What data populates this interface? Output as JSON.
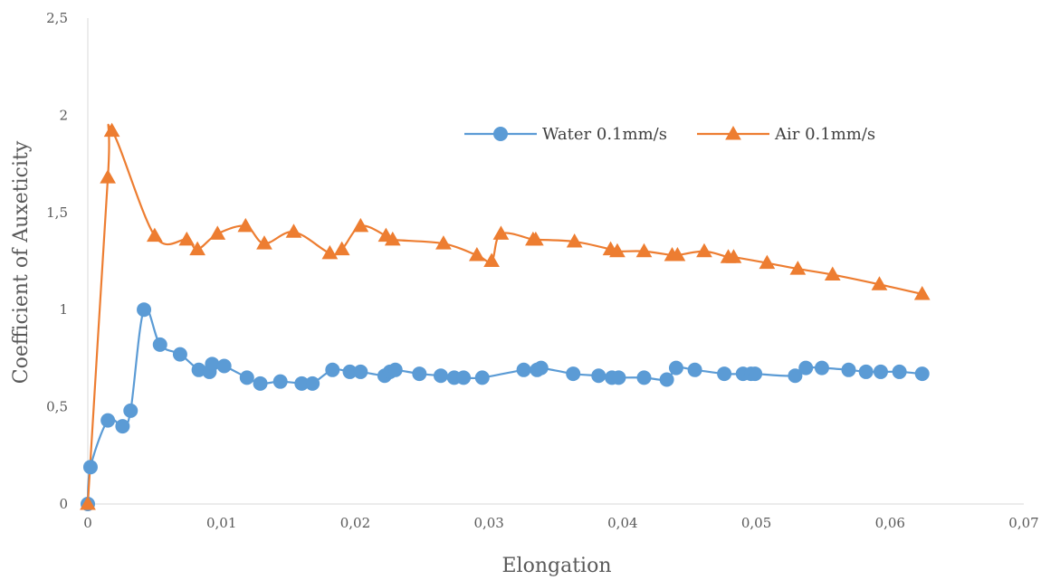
{
  "chart_data": {
    "type": "line",
    "title": "",
    "xlabel": "Elongation",
    "ylabel": "Coefficient of Auxeticity",
    "xlim": [
      0,
      0.07
    ],
    "ylim": [
      0,
      2.5
    ],
    "x_ticks": [
      0,
      0.01,
      0.02,
      0.03,
      0.04,
      0.05,
      0.06,
      0.07
    ],
    "x_tick_labels": [
      "0",
      "0,01",
      "0,02",
      "0,03",
      "0,04",
      "0,05",
      "0,06",
      "0,07"
    ],
    "y_ticks": [
      0,
      0.5,
      1,
      1.5,
      2,
      2.5
    ],
    "y_tick_labels": [
      "0",
      "0,5",
      "1",
      "1,5",
      "2",
      "2,5"
    ],
    "grid": false,
    "legend_position": "top-right",
    "series": [
      {
        "name": "Water 0.1mm/s",
        "color": "#5b9bd5",
        "marker": "circle",
        "x": [
          0,
          0.0002,
          0.0015,
          0.0026,
          0.0032,
          0.0042,
          0.0054,
          0.0069,
          0.0083,
          0.0091,
          0.0093,
          0.0102,
          0.0119,
          0.0129,
          0.0144,
          0.016,
          0.0168,
          0.0183,
          0.0196,
          0.0204,
          0.0222,
          0.0226,
          0.023,
          0.0248,
          0.0264,
          0.0274,
          0.0281,
          0.0295,
          0.0326,
          0.0336,
          0.0339,
          0.0363,
          0.0382,
          0.0392,
          0.0397,
          0.0416,
          0.0433,
          0.044,
          0.0454,
          0.0476,
          0.049,
          0.0496,
          0.0499,
          0.0529,
          0.0537,
          0.0549,
          0.0569,
          0.0582,
          0.0593,
          0.0607,
          0.0624
        ],
        "y": [
          0,
          0.19,
          0.43,
          0.4,
          0.48,
          1.0,
          0.82,
          0.77,
          0.69,
          0.68,
          0.72,
          0.71,
          0.65,
          0.62,
          0.63,
          0.62,
          0.62,
          0.69,
          0.68,
          0.68,
          0.66,
          0.68,
          0.69,
          0.67,
          0.66,
          0.65,
          0.65,
          0.65,
          0.69,
          0.69,
          0.7,
          0.67,
          0.66,
          0.65,
          0.65,
          0.65,
          0.64,
          0.7,
          0.69,
          0.67,
          0.67,
          0.67,
          0.67,
          0.66,
          0.7,
          0.7,
          0.69,
          0.68,
          0.68,
          0.68,
          0.67
        ]
      },
      {
        "name": "Air 0.1mm/s",
        "color": "#ed7d31",
        "marker": "triangle",
        "x": [
          0,
          0.0015,
          0.0018,
          0.005,
          0.0074,
          0.0082,
          0.0097,
          0.0118,
          0.0132,
          0.0154,
          0.0181,
          0.019,
          0.0204,
          0.0223,
          0.0228,
          0.0266,
          0.0291,
          0.0302,
          0.0309,
          0.0333,
          0.0335,
          0.0364,
          0.0391,
          0.0396,
          0.0416,
          0.0437,
          0.0441,
          0.0461,
          0.0479,
          0.0483,
          0.0508,
          0.0531,
          0.0557,
          0.0592,
          0.0624
        ],
        "y": [
          0,
          1.68,
          1.92,
          1.38,
          1.36,
          1.31,
          1.39,
          1.43,
          1.34,
          1.4,
          1.29,
          1.31,
          1.43,
          1.38,
          1.36,
          1.34,
          1.28,
          1.25,
          1.39,
          1.36,
          1.36,
          1.35,
          1.31,
          1.3,
          1.3,
          1.28,
          1.28,
          1.3,
          1.27,
          1.27,
          1.24,
          1.21,
          1.18,
          1.13,
          1.08
        ]
      }
    ]
  }
}
